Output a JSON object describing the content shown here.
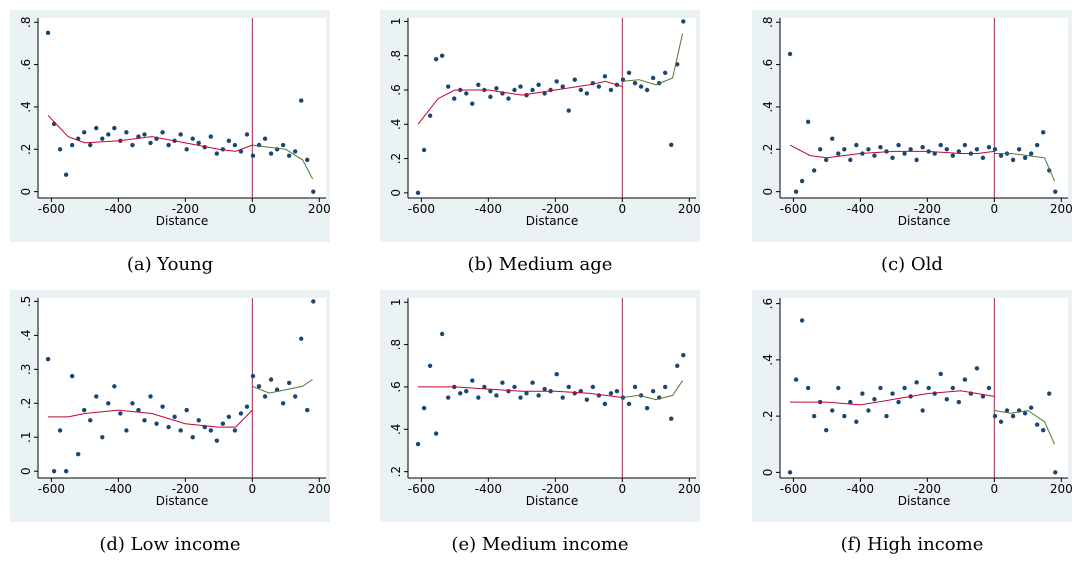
{
  "chart_data": [
    {
      "type": "scatter",
      "caption": "(a) Young",
      "xlabel": "Distance",
      "color": "#1a476f",
      "vline": 0,
      "vline_color": "#a3264a",
      "x": [
        -610,
        -592,
        -574,
        -556,
        -538,
        -520,
        -502,
        -484,
        -466,
        -448,
        -430,
        -412,
        -394,
        -376,
        -358,
        -340,
        -322,
        -304,
        -286,
        -268,
        -250,
        -232,
        -214,
        -196,
        -178,
        -160,
        -142,
        -124,
        -106,
        -88,
        -70,
        -52,
        -34,
        -16,
        2,
        20,
        38,
        56,
        74,
        92,
        110,
        128,
        146,
        164,
        182
      ],
      "values": [
        0.75,
        0.32,
        0.2,
        0.08,
        0.22,
        0.25,
        0.28,
        0.22,
        0.3,
        0.25,
        0.27,
        0.3,
        0.24,
        0.28,
        0.22,
        0.26,
        0.27,
        0.23,
        0.25,
        0.28,
        0.22,
        0.24,
        0.27,
        0.2,
        0.25,
        0.23,
        0.21,
        0.26,
        0.18,
        0.2,
        0.24,
        0.22,
        0.19,
        0.27,
        0.17,
        0.22,
        0.25,
        0.18,
        0.2,
        0.22,
        0.17,
        0.19,
        0.43,
        0.15,
        0.0
      ],
      "fits": [
        {
          "color": "#c10534",
          "x": [
            -610,
            -550,
            -500,
            -400,
            -300,
            -200,
            -100,
            -50,
            0
          ],
          "values": [
            0.36,
            0.26,
            0.23,
            0.24,
            0.26,
            0.23,
            0.2,
            0.19,
            0.22
          ]
        },
        {
          "color": "#55752f",
          "x": [
            0,
            50,
            100,
            150,
            180
          ],
          "values": [
            0.22,
            0.21,
            0.2,
            0.15,
            0.06
          ]
        }
      ],
      "xlim": [
        -640,
        220
      ],
      "xticks": [
        -600,
        -400,
        -200,
        0,
        200
      ],
      "ylim": [
        -0.03,
        0.82
      ],
      "yticks": [
        0,
        {
          "value": 0.2,
          "label": ".2"
        },
        {
          "value": 0.4,
          "label": ".4"
        },
        {
          "value": 0.6,
          "label": ".6"
        },
        {
          "value": 0.8,
          "label": ".8"
        }
      ]
    },
    {
      "type": "scatter",
      "caption": "(b) Medium age",
      "xlabel": "Distance",
      "color": "#1a476f",
      "vline": 0,
      "vline_color": "#a3264a",
      "x": [
        -610,
        -592,
        -574,
        -556,
        -538,
        -520,
        -502,
        -484,
        -466,
        -448,
        -430,
        -412,
        -394,
        -376,
        -358,
        -340,
        -322,
        -304,
        -286,
        -268,
        -250,
        -232,
        -214,
        -196,
        -178,
        -160,
        -142,
        -124,
        -106,
        -88,
        -70,
        -52,
        -34,
        -16,
        2,
        20,
        38,
        56,
        74,
        92,
        110,
        128,
        146,
        164,
        182
      ],
      "values": [
        0.0,
        0.25,
        0.45,
        0.78,
        0.8,
        0.62,
        0.55,
        0.6,
        0.58,
        0.52,
        0.63,
        0.6,
        0.56,
        0.61,
        0.58,
        0.55,
        0.6,
        0.62,
        0.57,
        0.6,
        0.63,
        0.58,
        0.6,
        0.65,
        0.62,
        0.48,
        0.66,
        0.6,
        0.58,
        0.64,
        0.62,
        0.68,
        0.6,
        0.63,
        0.66,
        0.7,
        0.64,
        0.62,
        0.6,
        0.67,
        0.64,
        0.7,
        0.28,
        0.75,
        1.0
      ],
      "fits": [
        {
          "color": "#c10534",
          "x": [
            -610,
            -550,
            -500,
            -400,
            -300,
            -200,
            -100,
            -50,
            0
          ],
          "values": [
            0.4,
            0.55,
            0.6,
            0.6,
            0.57,
            0.6,
            0.63,
            0.65,
            0.62
          ]
        },
        {
          "color": "#55752f",
          "x": [
            0,
            50,
            100,
            150,
            180
          ],
          "values": [
            0.65,
            0.66,
            0.63,
            0.67,
            0.93
          ]
        }
      ],
      "xlim": [
        -640,
        220
      ],
      "xticks": [
        -600,
        -400,
        -200,
        0,
        200
      ],
      "ylim": [
        -0.03,
        1.02
      ],
      "yticks": [
        0,
        {
          "value": 0.2,
          "label": ".2"
        },
        {
          "value": 0.4,
          "label": ".4"
        },
        {
          "value": 0.6,
          "label": ".6"
        },
        {
          "value": 0.8,
          "label": ".8"
        },
        1
      ]
    },
    {
      "type": "scatter",
      "caption": "(c) Old",
      "xlabel": "Distance",
      "color": "#1a476f",
      "vline": 0,
      "vline_color": "#a3264a",
      "x": [
        -610,
        -592,
        -574,
        -556,
        -538,
        -520,
        -502,
        -484,
        -466,
        -448,
        -430,
        -412,
        -394,
        -376,
        -358,
        -340,
        -322,
        -304,
        -286,
        -268,
        -250,
        -232,
        -214,
        -196,
        -178,
        -160,
        -142,
        -124,
        -106,
        -88,
        -70,
        -52,
        -34,
        -16,
        2,
        20,
        38,
        56,
        74,
        92,
        110,
        128,
        146,
        164,
        182
      ],
      "values": [
        0.65,
        0.0,
        0.05,
        0.33,
        0.1,
        0.2,
        0.15,
        0.25,
        0.18,
        0.2,
        0.15,
        0.22,
        0.18,
        0.2,
        0.17,
        0.21,
        0.19,
        0.16,
        0.22,
        0.18,
        0.2,
        0.15,
        0.21,
        0.19,
        0.18,
        0.22,
        0.2,
        0.17,
        0.19,
        0.22,
        0.18,
        0.2,
        0.16,
        0.21,
        0.2,
        0.17,
        0.18,
        0.15,
        0.2,
        0.16,
        0.18,
        0.22,
        0.28,
        0.1,
        0.0
      ],
      "fits": [
        {
          "color": "#c10534",
          "x": [
            -610,
            -550,
            -500,
            -400,
            -300,
            -200,
            -100,
            -50,
            0
          ],
          "values": [
            0.22,
            0.17,
            0.16,
            0.18,
            0.19,
            0.19,
            0.18,
            0.18,
            0.19
          ]
        },
        {
          "color": "#55752f",
          "x": [
            0,
            50,
            100,
            150,
            180
          ],
          "values": [
            0.18,
            0.18,
            0.17,
            0.16,
            0.05
          ]
        }
      ],
      "xlim": [
        -640,
        220
      ],
      "xticks": [
        -600,
        -400,
        -200,
        0,
        200
      ],
      "ylim": [
        -0.03,
        0.82
      ],
      "yticks": [
        0,
        {
          "value": 0.2,
          "label": ".2"
        },
        {
          "value": 0.4,
          "label": ".4"
        },
        {
          "value": 0.6,
          "label": ".6"
        },
        {
          "value": 0.8,
          "label": ".8"
        }
      ]
    },
    {
      "type": "scatter",
      "caption": "(d) Low income",
      "xlabel": "Distance",
      "color": "#1a476f",
      "vline": 0,
      "vline_color": "#a3264a",
      "x": [
        -610,
        -592,
        -574,
        -556,
        -538,
        -520,
        -502,
        -484,
        -466,
        -448,
        -430,
        -412,
        -394,
        -376,
        -358,
        -340,
        -322,
        -304,
        -286,
        -268,
        -250,
        -232,
        -214,
        -196,
        -178,
        -160,
        -142,
        -124,
        -106,
        -88,
        -70,
        -52,
        -34,
        -16,
        2,
        20,
        38,
        56,
        74,
        92,
        110,
        128,
        146,
        164,
        182
      ],
      "values": [
        0.33,
        0.0,
        0.12,
        0.0,
        0.28,
        0.05,
        0.18,
        0.15,
        0.22,
        0.1,
        0.2,
        0.25,
        0.17,
        0.12,
        0.2,
        0.18,
        0.15,
        0.22,
        0.14,
        0.19,
        0.13,
        0.16,
        0.12,
        0.18,
        0.1,
        0.15,
        0.13,
        0.12,
        0.09,
        0.14,
        0.16,
        0.12,
        0.17,
        0.19,
        0.28,
        0.25,
        0.22,
        0.27,
        0.24,
        0.2,
        0.26,
        0.22,
        0.39,
        0.18,
        0.5
      ],
      "fits": [
        {
          "color": "#c10534",
          "x": [
            -610,
            -550,
            -500,
            -400,
            -300,
            -200,
            -100,
            -50,
            0
          ],
          "values": [
            0.16,
            0.16,
            0.17,
            0.18,
            0.17,
            0.14,
            0.13,
            0.13,
            0.18
          ]
        },
        {
          "color": "#55752f",
          "x": [
            0,
            50,
            100,
            150,
            180
          ],
          "values": [
            0.25,
            0.23,
            0.24,
            0.25,
            0.27
          ]
        }
      ],
      "xlim": [
        -640,
        220
      ],
      "xticks": [
        -600,
        -400,
        -200,
        0,
        200
      ],
      "ylim": [
        -0.02,
        0.51
      ],
      "yticks": [
        0,
        {
          "value": 0.1,
          "label": ".1"
        },
        {
          "value": 0.2,
          "label": ".2"
        },
        {
          "value": 0.3,
          "label": ".3"
        },
        {
          "value": 0.4,
          "label": ".4"
        },
        {
          "value": 0.5,
          "label": ".5"
        }
      ]
    },
    {
      "type": "scatter",
      "caption": "(e) Medium income",
      "xlabel": "Distance",
      "color": "#1a476f",
      "vline": 0,
      "vline_color": "#a3264a",
      "x": [
        -610,
        -592,
        -574,
        -556,
        -538,
        -520,
        -502,
        -484,
        -466,
        -448,
        -430,
        -412,
        -394,
        -376,
        -358,
        -340,
        -322,
        -304,
        -286,
        -268,
        -250,
        -232,
        -214,
        -196,
        -178,
        -160,
        -142,
        -124,
        -106,
        -88,
        -70,
        -52,
        -34,
        -16,
        2,
        20,
        38,
        56,
        74,
        92,
        110,
        128,
        146,
        164,
        182
      ],
      "values": [
        0.33,
        0.5,
        0.7,
        0.38,
        0.85,
        0.55,
        0.6,
        0.57,
        0.58,
        0.63,
        0.55,
        0.6,
        0.58,
        0.56,
        0.62,
        0.58,
        0.6,
        0.55,
        0.57,
        0.62,
        0.56,
        0.59,
        0.58,
        0.66,
        0.55,
        0.6,
        0.57,
        0.58,
        0.54,
        0.6,
        0.56,
        0.52,
        0.57,
        0.58,
        0.55,
        0.52,
        0.6,
        0.56,
        0.5,
        0.58,
        0.55,
        0.6,
        0.45,
        0.7,
        0.75
      ],
      "fits": [
        {
          "color": "#c10534",
          "x": [
            -610,
            -500,
            -400,
            -300,
            -200,
            -100,
            0
          ],
          "values": [
            0.6,
            0.6,
            0.59,
            0.58,
            0.58,
            0.57,
            0.55
          ]
        },
        {
          "color": "#55752f",
          "x": [
            0,
            50,
            100,
            150,
            180
          ],
          "values": [
            0.55,
            0.56,
            0.54,
            0.56,
            0.63
          ]
        }
      ],
      "xlim": [
        -640,
        220
      ],
      "xticks": [
        -600,
        -400,
        -200,
        0,
        200
      ],
      "ylim": [
        0.17,
        1.02
      ],
      "yticks": [
        {
          "value": 0.2,
          "label": ".2"
        },
        {
          "value": 0.4,
          "label": ".4"
        },
        {
          "value": 0.6,
          "label": ".6"
        },
        {
          "value": 0.8,
          "label": ".8"
        },
        1
      ]
    },
    {
      "type": "scatter",
      "caption": "(f) High income",
      "xlabel": "Distance",
      "color": "#1a476f",
      "vline": 0,
      "vline_color": "#a3264a",
      "x": [
        -610,
        -592,
        -574,
        -556,
        -538,
        -520,
        -502,
        -484,
        -466,
        -448,
        -430,
        -412,
        -394,
        -376,
        -358,
        -340,
        -322,
        -304,
        -286,
        -268,
        -250,
        -232,
        -214,
        -196,
        -178,
        -160,
        -142,
        -124,
        -106,
        -88,
        -70,
        -52,
        -34,
        -16,
        2,
        20,
        38,
        56,
        74,
        92,
        110,
        128,
        146,
        164,
        182
      ],
      "values": [
        0.0,
        0.33,
        0.54,
        0.3,
        0.2,
        0.25,
        0.15,
        0.22,
        0.3,
        0.2,
        0.25,
        0.18,
        0.28,
        0.22,
        0.26,
        0.3,
        0.2,
        0.28,
        0.25,
        0.3,
        0.27,
        0.32,
        0.22,
        0.3,
        0.28,
        0.35,
        0.26,
        0.3,
        0.25,
        0.33,
        0.28,
        0.37,
        0.27,
        0.3,
        0.2,
        0.18,
        0.22,
        0.2,
        0.22,
        0.21,
        0.23,
        0.17,
        0.15,
        0.28,
        0.0
      ],
      "fits": [
        {
          "color": "#c10534",
          "x": [
            -610,
            -500,
            -400,
            -300,
            -200,
            -100,
            -50,
            0
          ],
          "values": [
            0.25,
            0.25,
            0.24,
            0.26,
            0.28,
            0.29,
            0.28,
            0.27
          ]
        },
        {
          "color": "#55752f",
          "x": [
            0,
            50,
            100,
            150,
            180
          ],
          "values": [
            0.22,
            0.21,
            0.22,
            0.18,
            0.1
          ]
        }
      ],
      "xlim": [
        -640,
        220
      ],
      "xticks": [
        -600,
        -400,
        -200,
        0,
        200
      ],
      "ylim": [
        -0.02,
        0.62
      ],
      "yticks": [
        0,
        {
          "value": 0.2,
          "label": ".2"
        },
        {
          "value": 0.4,
          "label": ".4"
        },
        {
          "value": 0.6,
          "label": ".6"
        }
      ]
    }
  ]
}
